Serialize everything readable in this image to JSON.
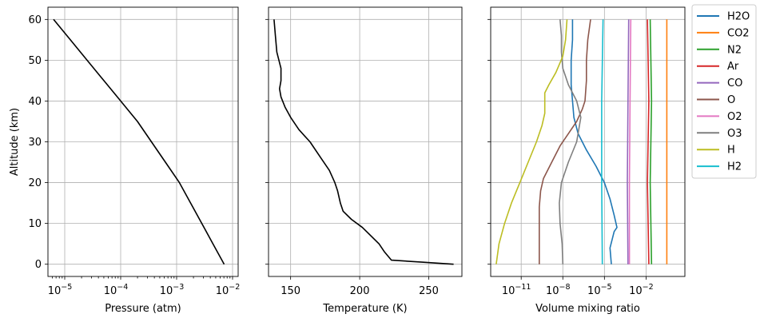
{
  "chart_data": [
    {
      "type": "line",
      "panel": "pressure",
      "xlabel": "Pressure (atm)",
      "ylabel": "Altitude (km)",
      "xscale": "log",
      "xlim_log10": [
        -5.3,
        -1.9
      ],
      "ylim": [
        -3,
        63
      ],
      "yticks": [
        0,
        10,
        20,
        30,
        40,
        50,
        60
      ],
      "xticks_log10": [
        -5,
        -4,
        -3,
        -2
      ],
      "xtick_labels": [
        "10",
        "10",
        "10",
        "10"
      ],
      "xtick_exponents": [
        "−5",
        "−4",
        "−3",
        "−2"
      ],
      "grid": true,
      "series": [
        {
          "color": "#000000",
          "x_log10": [
            -2.15,
            -2.35,
            -2.55,
            -2.75,
            -2.95,
            -3.2,
            -3.45,
            -3.7,
            -4.0,
            -4.3,
            -4.6,
            -4.9,
            -5.2
          ],
          "y": [
            0,
            5,
            10,
            15,
            20,
            25,
            30,
            35,
            40,
            45,
            50,
            55,
            60
          ]
        }
      ]
    },
    {
      "type": "line",
      "panel": "temperature",
      "xlabel": "Temperature (K)",
      "xlim": [
        134,
        274
      ],
      "ylim": [
        -3,
        63
      ],
      "xticks": [
        150,
        200,
        250
      ],
      "grid": true,
      "series": [
        {
          "color": "#000000",
          "x": [
            268,
            245,
            223,
            218,
            214,
            208,
            202,
            194,
            188,
            186,
            184,
            182,
            178,
            172,
            164,
            156,
            150,
            146,
            143,
            142,
            143,
            143,
            140,
            139,
            138
          ],
          "y": [
            0,
            0.5,
            1,
            3,
            5,
            7,
            9,
            11,
            13,
            15,
            18,
            20,
            23,
            26,
            30,
            33,
            36,
            38.5,
            41,
            43,
            45,
            48,
            52,
            56,
            60
          ]
        }
      ]
    },
    {
      "type": "line",
      "panel": "mixing-ratio",
      "xlabel": "Volume mixing ratio",
      "xscale": "log",
      "xlim_log10": [
        -13.2,
        0.8
      ],
      "ylim": [
        -3,
        63
      ],
      "xticks_log10": [
        -11,
        -8,
        -5,
        -2
      ],
      "xtick_labels": [
        "10",
        "10",
        "10",
        "10"
      ],
      "xtick_exponents": [
        "−11",
        "−8",
        "−5",
        "−2"
      ],
      "grid": true,
      "legend_placement": "outside upper right",
      "series": [
        {
          "name": "H2O",
          "color": "#1f77b4",
          "x_log10": [
            -4.5,
            -4.6,
            -4.3,
            -4.1,
            -4.3,
            -4.6,
            -5.0,
            -5.6,
            -6.3,
            -6.9,
            -7.2,
            -7.3,
            -7.4,
            -7.4,
            -7.3,
            -7.3
          ],
          "y": [
            0,
            4,
            8,
            9,
            12,
            16,
            20,
            24,
            28,
            32,
            36,
            40,
            44,
            50,
            55,
            60
          ]
        },
        {
          "name": "CO2",
          "color": "#ff7f0e",
          "x_log10": [
            -0.5,
            -0.5,
            -0.5
          ],
          "y": [
            0,
            30,
            60
          ]
        },
        {
          "name": "N2",
          "color": "#2ca02c",
          "x_log10": [
            -1.6,
            -1.7,
            -1.6,
            -1.7
          ],
          "y": [
            0,
            20,
            40,
            60
          ]
        },
        {
          "name": "Ar",
          "color": "#d62728",
          "x_log10": [
            -1.8,
            -1.9,
            -1.8,
            -1.9
          ],
          "y": [
            0,
            20,
            40,
            60
          ]
        },
        {
          "name": "CO",
          "color": "#9467bd",
          "x_log10": [
            -3.3,
            -3.35,
            -3.3,
            -3.25
          ],
          "y": [
            0,
            20,
            40,
            60
          ]
        },
        {
          "name": "O",
          "color": "#8c564b",
          "x_log10": [
            -9.7,
            -9.7,
            -9.7,
            -9.6,
            -9.4,
            -8.8,
            -8.2,
            -7.6,
            -7.0,
            -6.6,
            -6.4,
            -6.3,
            -6.3,
            -6.2,
            -6.0
          ],
          "y": [
            0,
            8,
            14,
            18,
            21,
            25,
            29,
            32,
            35,
            38,
            40,
            45,
            50,
            55,
            60
          ]
        },
        {
          "name": "O2",
          "color": "#e377c2",
          "x_log10": [
            -3.2,
            -3.2,
            -3.15,
            -3.1
          ],
          "y": [
            0,
            20,
            40,
            60
          ]
        },
        {
          "name": "O3",
          "color": "#7f7f7f",
          "x_log10": [
            -8.0,
            -8.05,
            -8.2,
            -8.25,
            -8.1,
            -7.6,
            -7.0,
            -6.7,
            -7.0,
            -7.6,
            -8.0,
            -8.1,
            -8.1,
            -8.2
          ],
          "y": [
            0,
            5,
            10,
            15,
            20,
            25,
            30,
            36,
            40,
            44,
            48,
            52,
            56,
            60
          ]
        },
        {
          "name": "H",
          "color": "#bcbd22",
          "x_log10": [
            -12.8,
            -12.6,
            -12.2,
            -11.7,
            -11.1,
            -10.5,
            -9.9,
            -9.5,
            -9.3,
            -9.3,
            -9.0,
            -8.5,
            -8.0,
            -7.8,
            -7.7
          ],
          "y": [
            0,
            5,
            10,
            15,
            20,
            25,
            30,
            34,
            37,
            42,
            44,
            47,
            51,
            55,
            60
          ]
        },
        {
          "name": "H2",
          "color": "#17becf",
          "x_log10": [
            -5.15,
            -5.2,
            -5.2,
            -5.1
          ],
          "y": [
            0,
            20,
            40,
            60
          ]
        }
      ]
    }
  ],
  "legend_items": [
    {
      "label": "H2O",
      "color": "#1f77b4"
    },
    {
      "label": "CO2",
      "color": "#ff7f0e"
    },
    {
      "label": "N2",
      "color": "#2ca02c"
    },
    {
      "label": "Ar",
      "color": "#d62728"
    },
    {
      "label": "CO",
      "color": "#9467bd"
    },
    {
      "label": "O",
      "color": "#8c564b"
    },
    {
      "label": "O2",
      "color": "#e377c2"
    },
    {
      "label": "O3",
      "color": "#7f7f7f"
    },
    {
      "label": "H",
      "color": "#bcbd22"
    },
    {
      "label": "H2",
      "color": "#17becf"
    }
  ]
}
